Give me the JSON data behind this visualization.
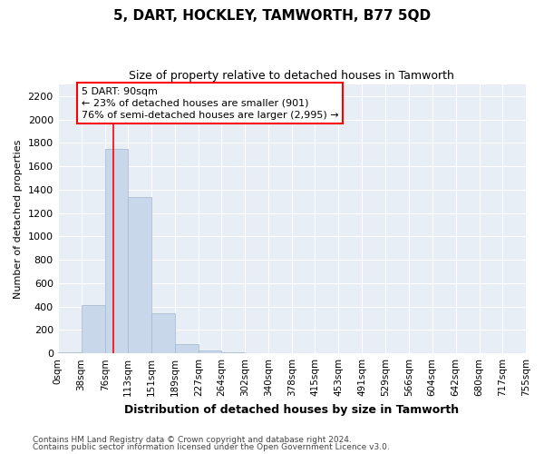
{
  "title": "5, DART, HOCKLEY, TAMWORTH, B77 5QD",
  "subtitle": "Size of property relative to detached houses in Tamworth",
  "xlabel": "Distribution of detached houses by size in Tamworth",
  "ylabel": "Number of detached properties",
  "bar_color": "#c8d8ea",
  "bar_edge_color": "#a0b8cc",
  "background_color": "#e8eef6",
  "grid_color": "#ffffff",
  "red_line_x": 90,
  "annotation_line1": "5 DART: 90sqm",
  "annotation_line2": "← 23% of detached houses are smaller (901)",
  "annotation_line3": "76% of semi-detached houses are larger (2,995) →",
  "bin_edges": [
    0,
    38,
    76,
    113,
    151,
    189,
    227,
    264,
    302,
    340,
    378,
    415,
    453,
    491,
    529,
    566,
    604,
    642,
    680,
    717,
    755
  ],
  "bar_heights": [
    10,
    415,
    1750,
    1340,
    340,
    80,
    25,
    10,
    0,
    0,
    0,
    0,
    0,
    0,
    0,
    0,
    0,
    0,
    0,
    0
  ],
  "ylim_max": 2300,
  "yticks": [
    0,
    200,
    400,
    600,
    800,
    1000,
    1200,
    1400,
    1600,
    1800,
    2000,
    2200
  ],
  "footnote1": "Contains HM Land Registry data © Crown copyright and database right 2024.",
  "footnote2": "Contains public sector information licensed under the Open Government Licence v3.0."
}
